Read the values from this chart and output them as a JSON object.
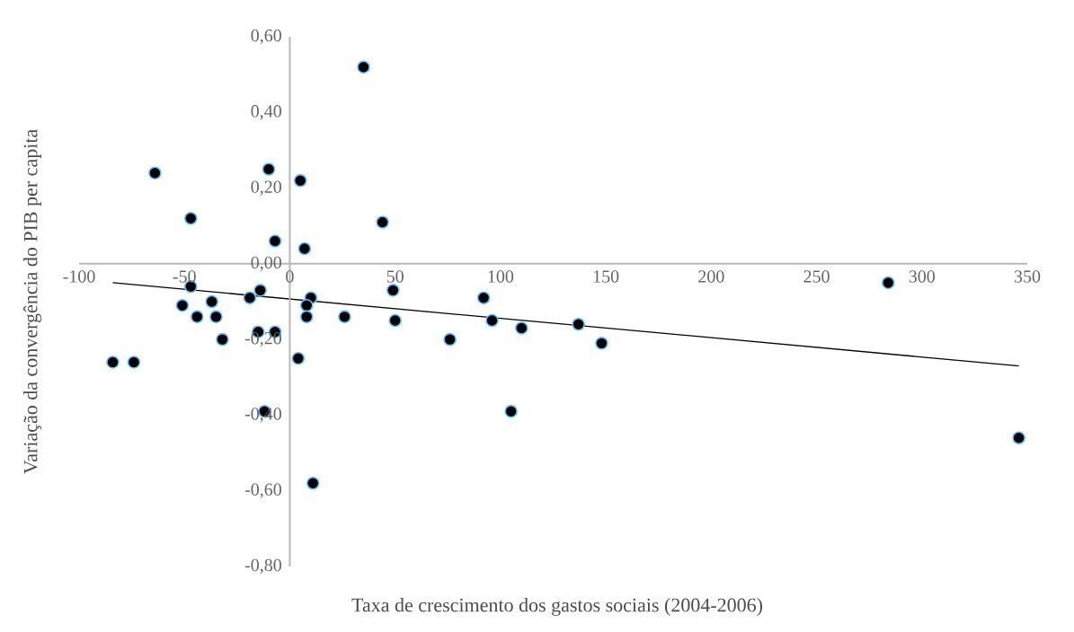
{
  "chart_data": {
    "type": "scatter",
    "xlabel": "Taxa de crescimento dos gastos sociais (2004-2006)",
    "ylabel": "Variação da convergência do PIB per capita",
    "xlim": [
      -100,
      350
    ],
    "ylim": [
      -0.8,
      0.6
    ],
    "xticks": [
      -100,
      -50,
      0,
      50,
      100,
      150,
      200,
      250,
      300,
      350
    ],
    "yticks": [
      {
        "value": -0.8,
        "label": "-0,80"
      },
      {
        "value": -0.6,
        "label": "-0,60"
      },
      {
        "value": -0.4,
        "label": "-0,40"
      },
      {
        "value": -0.2,
        "label": "-0,20"
      },
      {
        "value": 0,
        "label": "0,00"
      },
      {
        "value": 0.2,
        "label": "0,20"
      },
      {
        "value": 0.4,
        "label": "0,40"
      },
      {
        "value": 0.6,
        "label": "0,60"
      }
    ],
    "series": [
      {
        "type": "scatter",
        "marker": "circle",
        "color": "#000000",
        "x": [
          -64,
          -10,
          5,
          -47,
          44,
          -7,
          7,
          -47,
          -14,
          -19,
          -37,
          -51,
          10,
          8,
          -44,
          -35,
          8,
          26,
          50,
          -7,
          -15,
          -32,
          -84,
          -74,
          4,
          -12,
          49,
          35,
          92,
          96,
          110,
          76,
          137,
          148,
          105,
          11,
          284,
          346
        ],
        "values": [
          0.24,
          0.25,
          0.22,
          0.12,
          0.11,
          0.06,
          0.04,
          -0.06,
          -0.07,
          -0.09,
          -0.1,
          -0.11,
          -0.09,
          -0.11,
          -0.14,
          -0.14,
          -0.14,
          -0.14,
          -0.15,
          -0.18,
          -0.18,
          -0.2,
          -0.26,
          -0.26,
          -0.25,
          -0.39,
          -0.07,
          0.52,
          -0.09,
          -0.15,
          -0.17,
          -0.2,
          -0.16,
          -0.21,
          -0.39,
          -0.58,
          -0.05,
          -0.46
        ]
      },
      {
        "type": "line",
        "marker": "none",
        "line_style": "solid",
        "color": "#000000",
        "x": [
          -84,
          346
        ],
        "values": [
          -0.05,
          -0.27
        ]
      }
    ]
  }
}
